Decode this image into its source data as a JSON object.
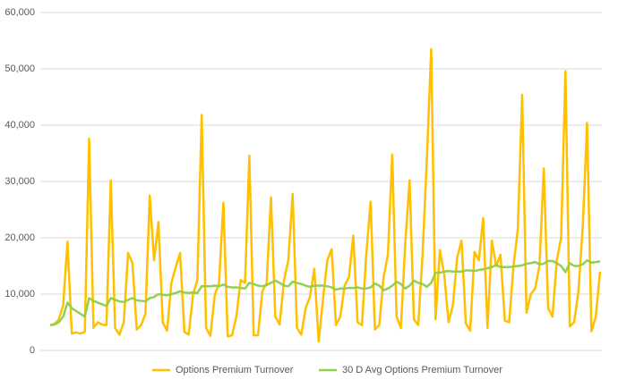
{
  "chart_data": {
    "type": "line",
    "categories": [
      null,
      null,
      null,
      null,
      null,
      null,
      null,
      null,
      null,
      null,
      null,
      null,
      null,
      null,
      null,
      null,
      null,
      null,
      null,
      null,
      null,
      null,
      null,
      null,
      null,
      null,
      null,
      null,
      null,
      null,
      null,
      null,
      null,
      null,
      null,
      null,
      null,
      null,
      null,
      null,
      null,
      null,
      null,
      null,
      null,
      null,
      null,
      null,
      null,
      null,
      null,
      null,
      null,
      null,
      null,
      null,
      null,
      null,
      null,
      null,
      null,
      null,
      null,
      null,
      null,
      null,
      null,
      null,
      null,
      null,
      null,
      null,
      null,
      null,
      null,
      null,
      null,
      null,
      null,
      null,
      null,
      null,
      null,
      null,
      null,
      null,
      null,
      null,
      null,
      null,
      null,
      null,
      null,
      null,
      null,
      null,
      null,
      null,
      null,
      null,
      null,
      null,
      null,
      null,
      null,
      null,
      null,
      null,
      null,
      null,
      null,
      null,
      null,
      null,
      null,
      null,
      null,
      null,
      null,
      null,
      null,
      null,
      null,
      null,
      null,
      null,
      null,
      null
    ],
    "series": [
      {
        "name": "Options Premium Turnover",
        "color": "#ffc000",
        "values": [
          4500,
          4700,
          5500,
          8000,
          19300,
          3000,
          3200,
          3000,
          3300,
          37600,
          4000,
          5000,
          4600,
          4500,
          30200,
          4000,
          2800,
          5000,
          17300,
          15500,
          3700,
          4500,
          6500,
          27500,
          16000,
          22800,
          5000,
          3500,
          12000,
          14800,
          17300,
          3300,
          2800,
          10000,
          12500,
          41800,
          4000,
          2600,
          9800,
          12000,
          26200,
          2500,
          2700,
          6000,
          12500,
          12000,
          34600,
          2700,
          2700,
          10500,
          12000,
          27200,
          6000,
          4600,
          12500,
          16000,
          27800,
          4000,
          2800,
          7500,
          9500,
          14500,
          1600,
          9000,
          16000,
          18000,
          4500,
          6000,
          11500,
          13000,
          20400,
          5000,
          4500,
          17000,
          26400,
          3700,
          4500,
          13000,
          17000,
          34800,
          6000,
          4000,
          19000,
          30200,
          5500,
          4500,
          17000,
          34000,
          53500,
          5500,
          17800,
          13500,
          5000,
          8000,
          16500,
          19500,
          4800,
          3500,
          17500,
          16000,
          23500,
          4000,
          19500,
          15000,
          17000,
          5300,
          5000,
          15000,
          21500,
          45400,
          6700,
          10000,
          11000,
          15000,
          32300,
          7500,
          6000,
          16000,
          20000,
          49600,
          4300,
          5000,
          10500,
          22000,
          40400,
          3400,
          6000,
          14000
        ]
      },
      {
        "name": "30 D Avg Options Premium Turnover",
        "color": "#92d050",
        "values": [
          4500,
          4600,
          5000,
          6000,
          8500,
          7500,
          7000,
          6500,
          6000,
          9300,
          8800,
          8500,
          8200,
          7900,
          9300,
          9000,
          8700,
          8600,
          9000,
          9300,
          8900,
          8800,
          8700,
          9300,
          9500,
          10000,
          9900,
          9800,
          10000,
          10200,
          10500,
          10300,
          10200,
          10300,
          10200,
          11400,
          11400,
          11400,
          11500,
          11400,
          11700,
          11300,
          11200,
          11200,
          11100,
          11000,
          12000,
          11800,
          11500,
          11400,
          11600,
          12000,
          12400,
          12000,
          11500,
          11400,
          12200,
          12000,
          11800,
          11500,
          11300,
          11500,
          11500,
          11500,
          11400,
          11200,
          10800,
          11000,
          11000,
          11100,
          11100,
          11200,
          11000,
          11000,
          11200,
          11900,
          11500,
          10700,
          11000,
          11500,
          12200,
          11800,
          11000,
          11500,
          12400,
          12000,
          11800,
          11300,
          12000,
          13800,
          13800,
          14000,
          14100,
          14000,
          14000,
          14000,
          14200,
          14200,
          14100,
          14300,
          14400,
          14600,
          14800,
          15200,
          14800,
          14800,
          14800,
          14900,
          15000,
          15100,
          15400,
          15500,
          15700,
          15300,
          15400,
          15900,
          15900,
          15500,
          15000,
          13900,
          15500,
          15000,
          15000,
          15300,
          16000,
          15600,
          15700,
          15800
        ]
      }
    ],
    "ylim": [
      0,
      60000
    ],
    "yticks": [
      0,
      {
        "value": 10000,
        "label": "10,000"
      },
      {
        "value": 20000,
        "label": "20,000"
      },
      {
        "value": 30000,
        "label": "30,000"
      },
      {
        "value": 40000,
        "label": "40,000"
      },
      {
        "value": 50000,
        "label": "50,000"
      },
      {
        "value": 60000,
        "label": "60,000"
      }
    ],
    "grid": true,
    "legend": "bottom"
  }
}
